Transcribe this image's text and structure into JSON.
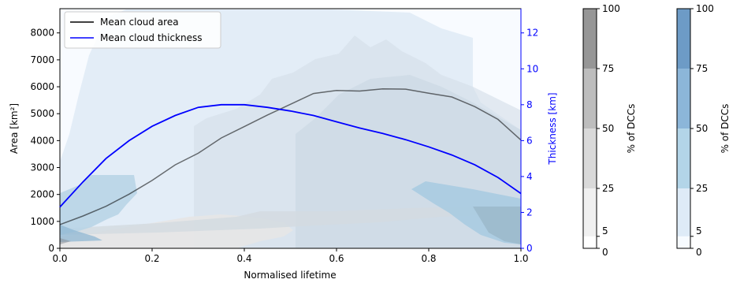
{
  "chart_data": {
    "type": "area",
    "xlabel": "Normalised lifetime",
    "ylabel_left": "Area [km²]",
    "ylabel_right": "Thickness [km]",
    "xlim": [
      0,
      1
    ],
    "ylim_left": [
      0,
      8900
    ],
    "ylim_right": [
      0,
      13.35
    ],
    "x_ticks": [
      "0.0",
      "0.2",
      "0.4",
      "0.6",
      "0.8",
      "1.0"
    ],
    "y_left_ticks": [
      "0",
      "1000",
      "2000",
      "3000",
      "4000",
      "5000",
      "6000",
      "7000",
      "8000"
    ],
    "y_right_ticks": [
      "0",
      "2",
      "4",
      "6",
      "8",
      "10",
      "12"
    ],
    "legend": {
      "placement": "upper-left",
      "entries": [
        "Mean cloud area",
        "Mean cloud thickness"
      ]
    },
    "series": [
      {
        "name": "Mean cloud area",
        "axis": "left",
        "color": "#000000",
        "x": [
          0,
          0.05,
          0.1,
          0.15,
          0.2,
          0.25,
          0.3,
          0.35,
          0.4,
          0.45,
          0.5,
          0.55,
          0.6,
          0.65,
          0.7,
          0.75,
          0.8,
          0.85,
          0.9,
          0.95,
          1.0
        ],
        "values": [
          880,
          1200,
          1560,
          2010,
          2520,
          3100,
          3530,
          4100,
          4520,
          4950,
          5350,
          5750,
          5860,
          5840,
          5920,
          5910,
          5760,
          5620,
          5260,
          4790,
          4020
        ]
      },
      {
        "name": "Mean cloud thickness",
        "axis": "right",
        "color": "#0000ff",
        "x": [
          0,
          0.05,
          0.1,
          0.15,
          0.2,
          0.25,
          0.3,
          0.35,
          0.4,
          0.45,
          0.5,
          0.55,
          0.6,
          0.65,
          0.7,
          0.75,
          0.8,
          0.85,
          0.9,
          0.95,
          1.0
        ],
        "values": [
          2.3,
          3.7,
          5.0,
          6.0,
          6.8,
          7.4,
          7.85,
          8.0,
          8.0,
          7.85,
          7.65,
          7.4,
          7.05,
          6.7,
          6.4,
          6.05,
          5.65,
          5.2,
          4.65,
          3.95,
          3.05
        ]
      }
    ],
    "colorbars": [
      {
        "label": "% of DCCs",
        "ticks": [
          "0",
          "5",
          "25",
          "50",
          "75",
          "100"
        ],
        "colors": [
          "#ffffff",
          "#f0f0f0",
          "#d9d9d9",
          "#bdbdbd",
          "#969696",
          "#737373"
        ]
      },
      {
        "label": "% of DCCs",
        "ticks": [
          "0",
          "5",
          "25",
          "50",
          "75",
          "100"
        ],
        "colors": [
          "#f7fbff",
          "#deebf7",
          "#b3d5e8",
          "#8cb6d9",
          "#6d9bc6",
          "#7a8cab"
        ]
      }
    ]
  }
}
